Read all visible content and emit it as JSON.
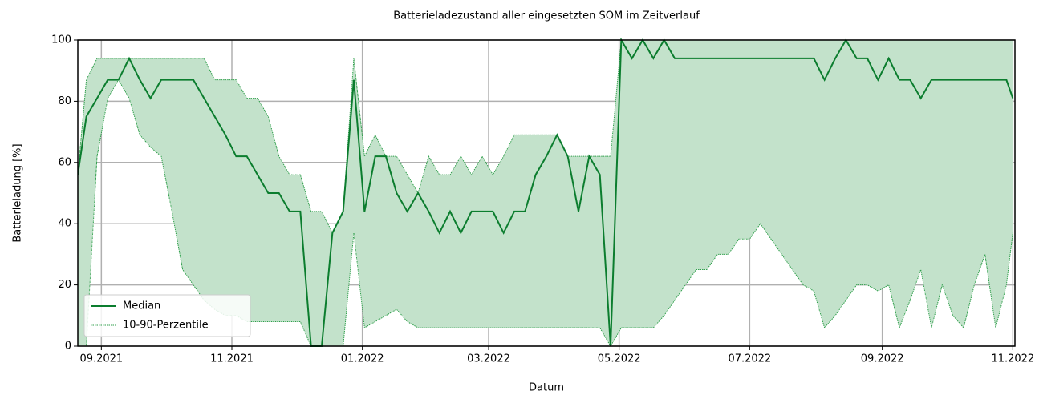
{
  "chart_data": {
    "type": "line",
    "title": "Batterieladezustand aller eingesetzten SOM im Zeitverlauf",
    "xlabel": "Datum",
    "ylabel": "Batterieladung [%]",
    "x": [
      "2021-08-21",
      "2021-08-25",
      "2021-08-30",
      "2021-09-04",
      "2021-09-09",
      "2021-09-14",
      "2021-09-19",
      "2021-09-24",
      "2021-09-29",
      "2021-10-04",
      "2021-10-09",
      "2021-10-14",
      "2021-10-19",
      "2021-10-24",
      "2021-10-29",
      "2021-11-03",
      "2021-11-08",
      "2021-11-13",
      "2021-11-18",
      "2021-11-23",
      "2021-11-28",
      "2021-12-03",
      "2021-12-08",
      "2021-12-13",
      "2021-12-18",
      "2021-12-23",
      "2021-12-28",
      "2022-01-02",
      "2022-01-07",
      "2022-01-12",
      "2022-01-17",
      "2022-01-22",
      "2022-01-27",
      "2022-02-01",
      "2022-02-06",
      "2022-02-11",
      "2022-02-16",
      "2022-02-21",
      "2022-02-26",
      "2022-03-03",
      "2022-03-08",
      "2022-03-13",
      "2022-03-18",
      "2022-03-23",
      "2022-03-28",
      "2022-04-02",
      "2022-04-07",
      "2022-04-12",
      "2022-04-17",
      "2022-04-22",
      "2022-04-27",
      "2022-05-02",
      "2022-05-07",
      "2022-05-12",
      "2022-05-17",
      "2022-05-22",
      "2022-05-27",
      "2022-06-01",
      "2022-06-06",
      "2022-06-11",
      "2022-06-16",
      "2022-06-21",
      "2022-06-26",
      "2022-07-01",
      "2022-07-06",
      "2022-07-11",
      "2022-07-16",
      "2022-07-21",
      "2022-07-26",
      "2022-07-31",
      "2022-08-05",
      "2022-08-10",
      "2022-08-15",
      "2022-08-20",
      "2022-08-25",
      "2022-08-30",
      "2022-09-04",
      "2022-09-09",
      "2022-09-14",
      "2022-09-19",
      "2022-09-24",
      "2022-09-29",
      "2022-10-04",
      "2022-10-09",
      "2022-10-14",
      "2022-10-19",
      "2022-10-24",
      "2022-10-29",
      "2022-11-01"
    ],
    "series": [
      {
        "name": "Median",
        "color": "#0b7d2e",
        "values": [
          56,
          75,
          81,
          87,
          87,
          94,
          87,
          81,
          87,
          87,
          87,
          87,
          81,
          75,
          69,
          62,
          62,
          56,
          50,
          50,
          44,
          44,
          0,
          0,
          37,
          44,
          87,
          44,
          62,
          62,
          50,
          44,
          50,
          44,
          37,
          44,
          37,
          44,
          44,
          44,
          37,
          44,
          44,
          56,
          62,
          69,
          62,
          44,
          62,
          56,
          0,
          100,
          94,
          100,
          94,
          100,
          94,
          94,
          94,
          94,
          94,
          94,
          94,
          94,
          94,
          94,
          94,
          94,
          94,
          94,
          87,
          94,
          100,
          94,
          94,
          87,
          94,
          87,
          87,
          81,
          87,
          87,
          87,
          87,
          87,
          87,
          87,
          87,
          81
        ]
      }
    ],
    "band": {
      "name": "10-90-Perzentile",
      "color": "#2e9e4a",
      "fill": "#c3e2cb",
      "lower": [
        0,
        0,
        62,
        81,
        87,
        81,
        69,
        65,
        62,
        44,
        25,
        20,
        15,
        12,
        10,
        10,
        8,
        8,
        8,
        8,
        8,
        8,
        0,
        0,
        0,
        0,
        37,
        6,
        8,
        10,
        12,
        8,
        6,
        6,
        6,
        6,
        6,
        6,
        6,
        6,
        6,
        6,
        6,
        6,
        6,
        6,
        6,
        6,
        6,
        6,
        0,
        6,
        6,
        6,
        6,
        10,
        15,
        20,
        25,
        25,
        30,
        30,
        35,
        35,
        40,
        35,
        30,
        25,
        20,
        18,
        6,
        10,
        15,
        20,
        20,
        18,
        20,
        6,
        15,
        25,
        6,
        20,
        10,
        6,
        20,
        30,
        6,
        20,
        37
      ],
      "upper": [
        56,
        87,
        94,
        94,
        94,
        94,
        94,
        94,
        94,
        94,
        94,
        94,
        94,
        87,
        87,
        87,
        81,
        81,
        75,
        62,
        56,
        56,
        44,
        44,
        37,
        44,
        94,
        62,
        69,
        62,
        62,
        56,
        50,
        62,
        56,
        56,
        62,
        56,
        62,
        56,
        62,
        69,
        69,
        69,
        69,
        69,
        62,
        62,
        62,
        62,
        62,
        100,
        100,
        100,
        100,
        100,
        100,
        100,
        100,
        100,
        100,
        100,
        100,
        100,
        100,
        100,
        100,
        100,
        100,
        100,
        100,
        100,
        100,
        100,
        100,
        100,
        100,
        100,
        100,
        100,
        100,
        100,
        100,
        100,
        100,
        100,
        100,
        100,
        100
      ]
    },
    "xlim": [
      "2021-08-21",
      "2022-11-02"
    ],
    "xticks": [
      {
        "value": "2021-09-01",
        "label": "09.2021"
      },
      {
        "value": "2021-11-01",
        "label": "11.2021"
      },
      {
        "value": "2022-01-01",
        "label": "01.2022"
      },
      {
        "value": "2022-03-01",
        "label": "03.2022"
      },
      {
        "value": "2022-05-01",
        "label": "05.2022"
      },
      {
        "value": "2022-07-01",
        "label": "07.2022"
      },
      {
        "value": "2022-09-01",
        "label": "09.2022"
      },
      {
        "value": "2022-11-01",
        "label": "11.2022"
      }
    ],
    "ylim": [
      0,
      100
    ],
    "yticks": [
      0,
      20,
      40,
      60,
      80,
      100
    ],
    "grid": true,
    "legend": "lower left"
  }
}
